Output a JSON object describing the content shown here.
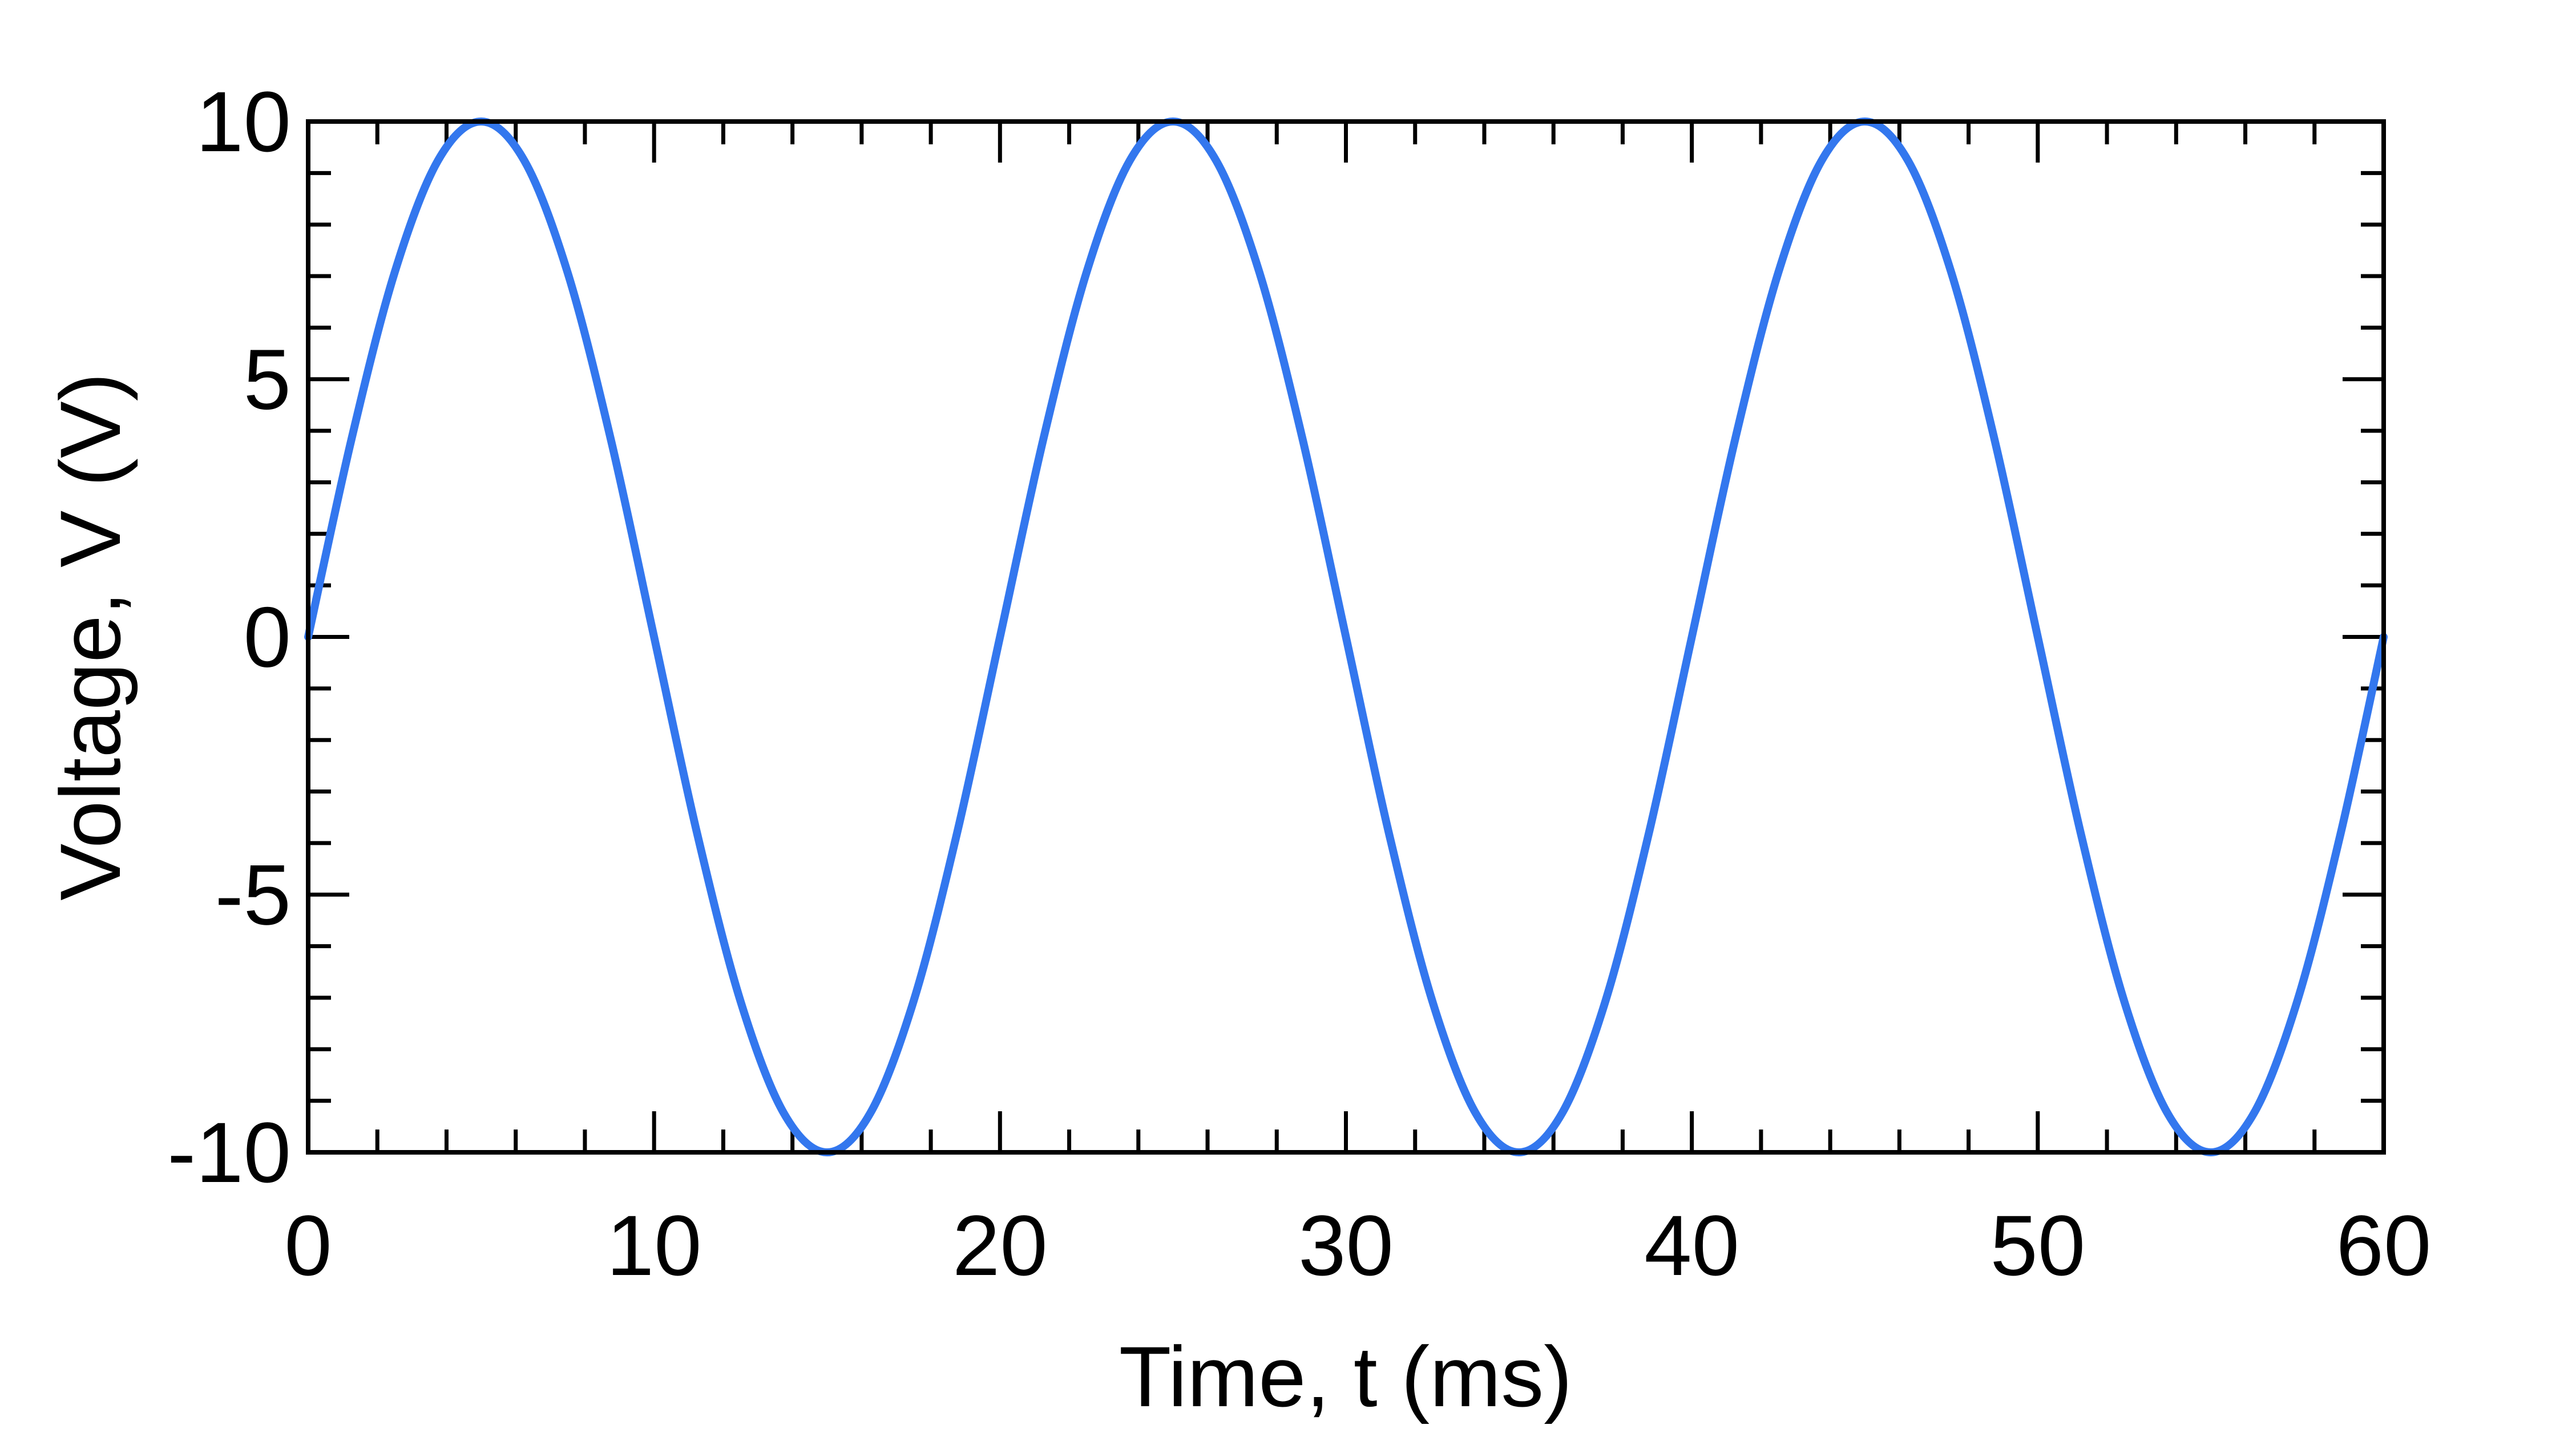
{
  "chart_data": {
    "type": "line",
    "title": "",
    "xlabel": "Time, t (ms)",
    "ylabel": "Voltage, V (V)",
    "xlim": [
      0,
      60
    ],
    "ylim": [
      -10,
      10
    ],
    "x_ticks": [
      0,
      10,
      20,
      30,
      40,
      50,
      60
    ],
    "x_tick_labels": [
      "0",
      "10",
      "20",
      "30",
      "40",
      "50",
      "60"
    ],
    "y_ticks": [
      10,
      5,
      0,
      -5,
      -10
    ],
    "y_tick_labels": [
      "10",
      "5",
      "0",
      "-5",
      "-10"
    ],
    "x_minor_step": 2,
    "y_minor_step": 1,
    "grid": false,
    "legend": "none",
    "series": [
      {
        "color": "#3377ee",
        "x": [
          0,
          1.25,
          2.5,
          3.75,
          5,
          6.25,
          7.5,
          8.75,
          10,
          11.25,
          12.5,
          13.75,
          15,
          16.25,
          17.5,
          18.75,
          20,
          21.25,
          22.5,
          23.75,
          25,
          26.25,
          27.5,
          28.75,
          30,
          31.25,
          32.5,
          33.75,
          35,
          36.25,
          37.5,
          38.75,
          40,
          41.25,
          42.5,
          43.75,
          45,
          46.25,
          47.5,
          48.75,
          50,
          51.25,
          52.5,
          53.75,
          55,
          56.25,
          57.5,
          58.75,
          60
        ],
        "y": [
          0,
          3.83,
          7.07,
          9.24,
          10,
          9.24,
          7.07,
          3.83,
          0,
          -3.83,
          -7.07,
          -9.24,
          -10,
          -9.24,
          -7.07,
          -3.83,
          0,
          3.83,
          7.07,
          9.24,
          10,
          9.24,
          7.07,
          3.83,
          0,
          -3.83,
          -7.07,
          -9.24,
          -10,
          -9.24,
          -7.07,
          -3.83,
          0,
          3.83,
          7.07,
          9.24,
          10,
          9.24,
          7.07,
          3.83,
          0,
          -3.83,
          -7.07,
          -9.24,
          -10,
          -9.24,
          -7.07,
          -3.83,
          0
        ]
      }
    ]
  }
}
